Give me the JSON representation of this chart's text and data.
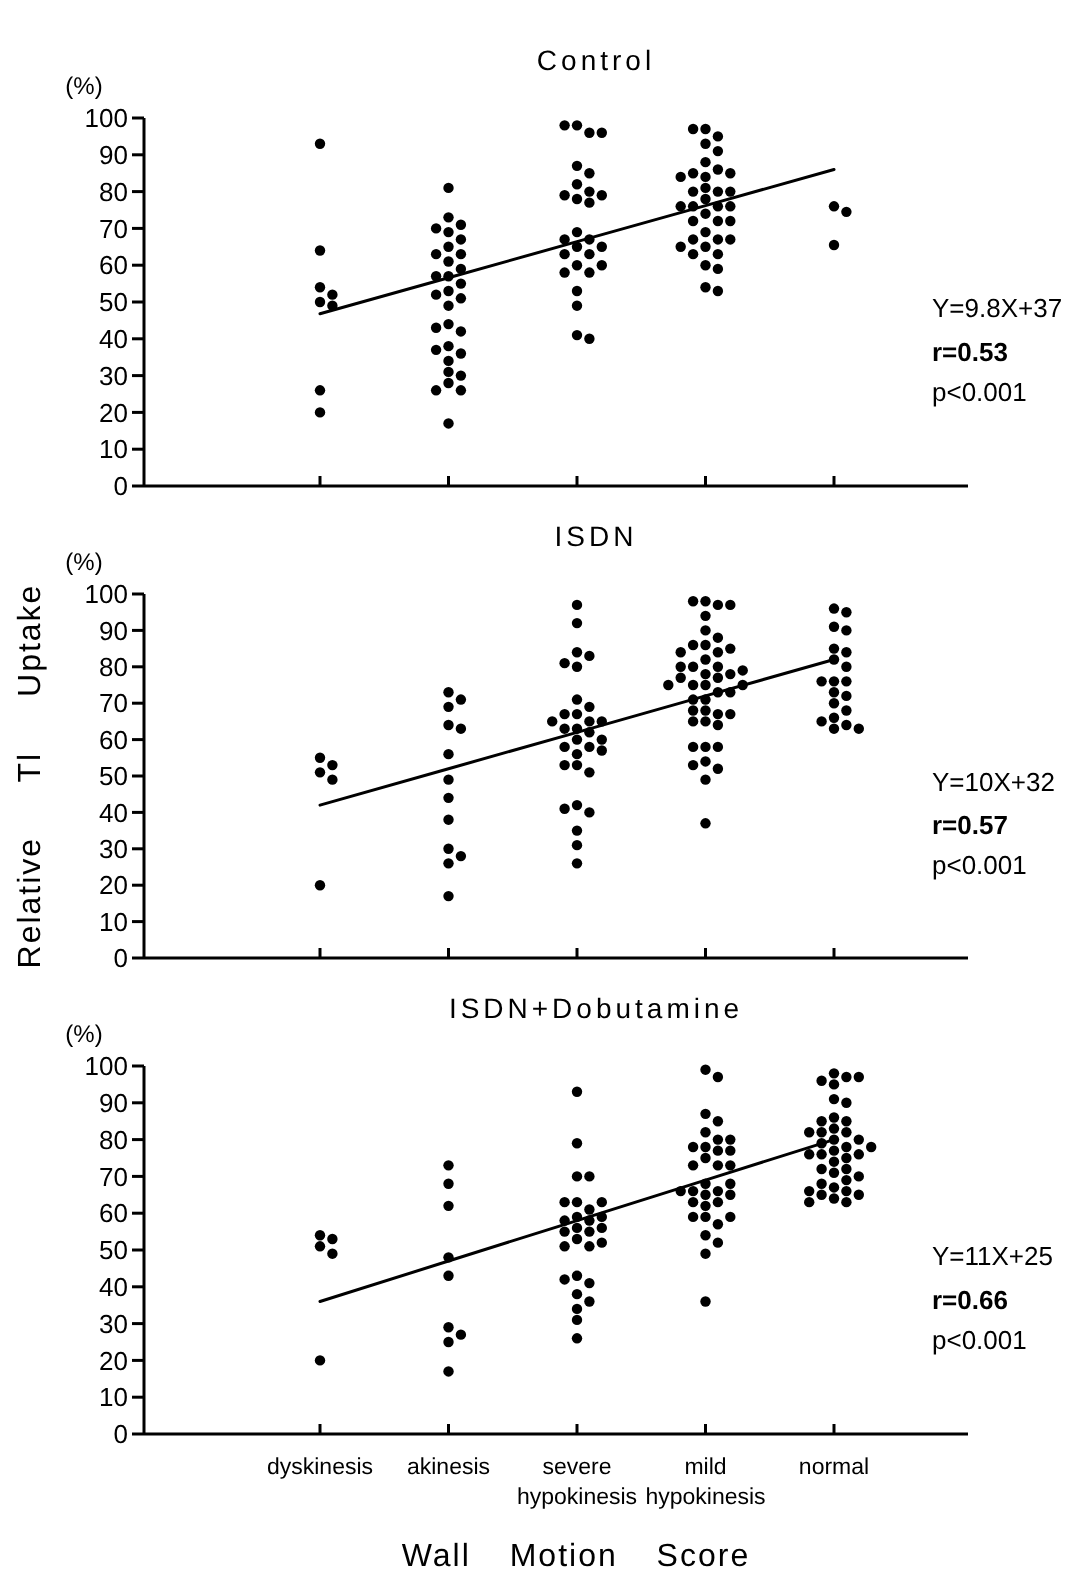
{
  "chart_data": [
    {
      "type": "scatter",
      "title": "Control",
      "ylabel": "(%)",
      "categories": [
        "dyskinesis",
        "akinesis",
        "severe hypokinesis",
        "mild hypokinesis",
        "normal"
      ],
      "ylim": [
        0,
        100
      ],
      "yticks": [
        0,
        10,
        20,
        30,
        40,
        50,
        60,
        70,
        80,
        90,
        100
      ],
      "tick_labels": "y",
      "marker": "circle",
      "annotations": [
        "Y=9.8X+37",
        "r=0.53",
        "p<0.001"
      ],
      "series": [
        {
          "type": "scatter",
          "color": "#000000",
          "x": [
            "dyskinesis",
            "dyskinesis",
            "dyskinesis",
            "dyskinesis",
            "dyskinesis",
            "dyskinesis",
            "dyskinesis",
            "dyskinesis"
          ],
          "values": [
            93,
            64,
            54,
            52,
            50,
            49,
            26,
            20
          ]
        },
        {
          "type": "scatter",
          "color": "#000000",
          "x": [
            "akinesis",
            "akinesis",
            "akinesis",
            "akinesis",
            "akinesis",
            "akinesis",
            "akinesis",
            "akinesis",
            "akinesis",
            "akinesis",
            "akinesis",
            "akinesis",
            "akinesis",
            "akinesis",
            "akinesis",
            "akinesis",
            "akinesis",
            "akinesis",
            "akinesis",
            "akinesis",
            "akinesis",
            "akinesis",
            "akinesis",
            "akinesis",
            "akinesis",
            "akinesis",
            "akinesis",
            "akinesis",
            "akinesis",
            "akinesis",
            "akinesis"
          ],
          "values": [
            81,
            73,
            71,
            69,
            67,
            65,
            63,
            61,
            59,
            57,
            55,
            53,
            51,
            49,
            44,
            42,
            38,
            36,
            34,
            31,
            30,
            28,
            26,
            17,
            70,
            63,
            57,
            52,
            43,
            37,
            26
          ]
        },
        {
          "type": "scatter",
          "color": "#000000",
          "x": [
            "severe hypokinesis",
            "severe hypokinesis",
            "severe hypokinesis",
            "severe hypokinesis",
            "severe hypokinesis",
            "severe hypokinesis",
            "severe hypokinesis",
            "severe hypokinesis",
            "severe hypokinesis",
            "severe hypokinesis",
            "severe hypokinesis",
            "severe hypokinesis",
            "severe hypokinesis",
            "severe hypokinesis",
            "severe hypokinesis",
            "severe hypokinesis",
            "severe hypokinesis",
            "severe hypokinesis",
            "severe hypokinesis",
            "severe hypokinesis",
            "severe hypokinesis",
            "severe hypokinesis",
            "severe hypokinesis",
            "severe hypokinesis",
            "severe hypokinesis",
            "severe hypokinesis",
            "severe hypokinesis"
          ],
          "values": [
            98,
            96,
            87,
            85,
            82,
            80,
            78,
            77,
            69,
            67,
            65,
            63,
            60,
            58,
            53,
            49,
            98,
            96,
            79,
            63,
            58,
            41,
            79,
            67,
            65,
            60,
            40
          ]
        },
        {
          "type": "scatter",
          "color": "#000000",
          "x": [
            "mild hypokinesis",
            "mild hypokinesis",
            "mild hypokinesis",
            "mild hypokinesis",
            "mild hypokinesis",
            "mild hypokinesis",
            "mild hypokinesis",
            "mild hypokinesis",
            "mild hypokinesis",
            "mild hypokinesis",
            "mild hypokinesis",
            "mild hypokinesis",
            "mild hypokinesis",
            "mild hypokinesis",
            "mild hypokinesis",
            "mild hypokinesis",
            "mild hypokinesis",
            "mild hypokinesis",
            "mild hypokinesis",
            "mild hypokinesis",
            "mild hypokinesis",
            "mild hypokinesis",
            "mild hypokinesis",
            "mild hypokinesis",
            "mild hypokinesis",
            "mild hypokinesis",
            "mild hypokinesis",
            "mild hypokinesis",
            "mild hypokinesis",
            "mild hypokinesis",
            "mild hypokinesis",
            "mild hypokinesis",
            "mild hypokinesis",
            "mild hypokinesis",
            "mild hypokinesis",
            "mild hypokinesis"
          ],
          "values": [
            97,
            95,
            93,
            88,
            86,
            84,
            81,
            80,
            78,
            76,
            74,
            72,
            69,
            67,
            65,
            63,
            60,
            59,
            54,
            97,
            91,
            85,
            80,
            76,
            72,
            67,
            63,
            53,
            85,
            80,
            76,
            72,
            67,
            65,
            84,
            76
          ]
        },
        {
          "type": "scatter",
          "color": "#000000",
          "x": [
            "normal",
            "normal",
            "normal"
          ],
          "values": [
            76,
            74.5,
            65.5
          ]
        },
        {
          "type": "line",
          "marker": "none",
          "color": "#000000",
          "x": [
            "dyskinesis",
            "akinesis",
            "severe hypokinesis",
            "mild hypokinesis",
            "normal"
          ],
          "values": [
            46.8,
            56.6,
            66.4,
            76.2,
            86
          ]
        }
      ]
    },
    {
      "type": "scatter",
      "title": "ISDN",
      "ylabel": "(%)",
      "categories": [
        "dyskinesis",
        "akinesis",
        "severe hypokinesis",
        "mild hypokinesis",
        "normal"
      ],
      "ylim": [
        0,
        100
      ],
      "yticks": [
        0,
        10,
        20,
        30,
        40,
        50,
        60,
        70,
        80,
        90,
        100
      ],
      "tick_labels": "y",
      "marker": "circle",
      "annotations": [
        "Relative Tl Uptake",
        "Y=10X+32",
        "r=0.57",
        "p<0.001"
      ],
      "series": [
        {
          "type": "scatter",
          "color": "#000000",
          "x": [
            "dyskinesis",
            "dyskinesis",
            "dyskinesis",
            "dyskinesis",
            "dyskinesis"
          ],
          "values": [
            55,
            53,
            51,
            49,
            20
          ]
        },
        {
          "type": "scatter",
          "color": "#000000",
          "x": [
            "akinesis",
            "akinesis",
            "akinesis",
            "akinesis",
            "akinesis",
            "akinesis",
            "akinesis",
            "akinesis",
            "akinesis",
            "akinesis",
            "akinesis",
            "akinesis",
            "akinesis"
          ],
          "values": [
            73,
            71,
            64,
            56,
            49,
            44,
            38,
            30,
            28,
            17,
            69,
            63,
            26
          ]
        },
        {
          "type": "scatter",
          "color": "#000000",
          "x": [
            "severe hypokinesis",
            "severe hypokinesis",
            "severe hypokinesis",
            "severe hypokinesis",
            "severe hypokinesis",
            "severe hypokinesis",
            "severe hypokinesis",
            "severe hypokinesis",
            "severe hypokinesis",
            "severe hypokinesis",
            "severe hypokinesis",
            "severe hypokinesis",
            "severe hypokinesis",
            "severe hypokinesis",
            "severe hypokinesis",
            "severe hypokinesis",
            "severe hypokinesis",
            "severe hypokinesis",
            "severe hypokinesis",
            "severe hypokinesis",
            "severe hypokinesis",
            "severe hypokinesis",
            "severe hypokinesis",
            "severe hypokinesis",
            "severe hypokinesis",
            "severe hypokinesis",
            "severe hypokinesis",
            "severe hypokinesis",
            "severe hypokinesis",
            "severe hypokinesis",
            "severe hypokinesis"
          ],
          "values": [
            97,
            92,
            84,
            83,
            80,
            71,
            69,
            67,
            65,
            63,
            62,
            60,
            58,
            56,
            53,
            51,
            42,
            40,
            35,
            31,
            26,
            81,
            67,
            65,
            58,
            53,
            41,
            65,
            63,
            60,
            57
          ]
        },
        {
          "type": "scatter",
          "color": "#000000",
          "x": [
            "mild hypokinesis",
            "mild hypokinesis",
            "mild hypokinesis",
            "mild hypokinesis",
            "mild hypokinesis",
            "mild hypokinesis",
            "mild hypokinesis",
            "mild hypokinesis",
            "mild hypokinesis",
            "mild hypokinesis",
            "mild hypokinesis",
            "mild hypokinesis",
            "mild hypokinesis",
            "mild hypokinesis",
            "mild hypokinesis",
            "mild hypokinesis",
            "mild hypokinesis",
            "mild hypokinesis",
            "mild hypokinesis",
            "mild hypokinesis",
            "mild hypokinesis",
            "mild hypokinesis",
            "mild hypokinesis",
            "mild hypokinesis",
            "mild hypokinesis",
            "mild hypokinesis",
            "mild hypokinesis",
            "mild hypokinesis",
            "mild hypokinesis",
            "mild hypokinesis",
            "mild hypokinesis",
            "mild hypokinesis",
            "mild hypokinesis",
            "mild hypokinesis",
            "mild hypokinesis",
            "mild hypokinesis",
            "mild hypokinesis",
            "mild hypokinesis",
            "mild hypokinesis",
            "mild hypokinesis",
            "mild hypokinesis",
            "mild hypokinesis",
            "mild hypokinesis",
            "mild hypokinesis"
          ],
          "values": [
            98,
            97,
            94,
            90,
            88,
            86,
            84,
            82,
            80,
            78,
            77,
            75,
            73,
            71,
            68,
            67,
            65,
            64,
            58,
            54,
            52,
            49,
            37,
            98,
            86,
            80,
            78,
            75,
            73,
            68,
            65,
            58,
            53,
            97,
            85,
            80,
            77,
            75,
            71,
            67,
            58,
            84,
            79,
            75
          ]
        },
        {
          "type": "scatter",
          "color": "#000000",
          "x": [
            "normal",
            "normal",
            "normal",
            "normal",
            "normal",
            "normal",
            "normal",
            "normal",
            "normal",
            "normal",
            "normal",
            "normal",
            "normal",
            "normal",
            "normal",
            "normal",
            "normal",
            "normal",
            "normal",
            "normal"
          ],
          "values": [
            96,
            91,
            85,
            84,
            82,
            80,
            76,
            73,
            72,
            70,
            68,
            66,
            64,
            63,
            95,
            90,
            76,
            65,
            63,
            76
          ]
        },
        {
          "type": "line",
          "marker": "none",
          "color": "#000000",
          "x": [
            "dyskinesis",
            "akinesis",
            "severe hypokinesis",
            "mild hypokinesis",
            "normal"
          ],
          "values": [
            42,
            52,
            62,
            72,
            82
          ]
        }
      ]
    },
    {
      "type": "scatter",
      "title": "ISDN+Dobutamine",
      "ylabel": "(%)",
      "xlabel": "Wall Motion Score",
      "categories": [
        "dyskinesis",
        "akinesis",
        "severe hypokinesis",
        "mild hypokinesis",
        "normal"
      ],
      "ylim": [
        0,
        100
      ],
      "yticks": [
        0,
        10,
        20,
        30,
        40,
        50,
        60,
        70,
        80,
        90,
        100
      ],
      "marker": "circle",
      "annotations": [
        "Y=11X+25",
        "r=0.66",
        "p<0.001"
      ],
      "series": [
        {
          "type": "scatter",
          "color": "#000000",
          "x": [
            "dyskinesis",
            "dyskinesis",
            "dyskinesis",
            "dyskinesis",
            "dyskinesis"
          ],
          "values": [
            54,
            53,
            51,
            49,
            20
          ]
        },
        {
          "type": "scatter",
          "color": "#000000",
          "x": [
            "akinesis",
            "akinesis",
            "akinesis",
            "akinesis",
            "akinesis",
            "akinesis",
            "akinesis",
            "akinesis",
            "akinesis"
          ],
          "values": [
            73,
            68,
            62,
            48,
            43,
            29,
            27,
            17,
            25
          ]
        },
        {
          "type": "scatter",
          "color": "#000000",
          "x": [
            "severe hypokinesis",
            "severe hypokinesis",
            "severe hypokinesis",
            "severe hypokinesis",
            "severe hypokinesis",
            "severe hypokinesis",
            "severe hypokinesis",
            "severe hypokinesis",
            "severe hypokinesis",
            "severe hypokinesis",
            "severe hypokinesis",
            "severe hypokinesis",
            "severe hypokinesis",
            "severe hypokinesis",
            "severe hypokinesis",
            "severe hypokinesis",
            "severe hypokinesis",
            "severe hypokinesis",
            "severe hypokinesis",
            "severe hypokinesis",
            "severe hypokinesis",
            "severe hypokinesis",
            "severe hypokinesis",
            "severe hypokinesis",
            "severe hypokinesis",
            "severe hypokinesis",
            "severe hypokinesis",
            "severe hypokinesis"
          ],
          "values": [
            93,
            79,
            70,
            63,
            61,
            59,
            58,
            56,
            55,
            53,
            51,
            43,
            41,
            38,
            36,
            34,
            31,
            26,
            63,
            58,
            55,
            51,
            70,
            63,
            59,
            56,
            52,
            42
          ]
        },
        {
          "type": "scatter",
          "color": "#000000",
          "x": [
            "mild hypokinesis",
            "mild hypokinesis",
            "mild hypokinesis",
            "mild hypokinesis",
            "mild hypokinesis",
            "mild hypokinesis",
            "mild hypokinesis",
            "mild hypokinesis",
            "mild hypokinesis",
            "mild hypokinesis",
            "mild hypokinesis",
            "mild hypokinesis",
            "mild hypokinesis",
            "mild hypokinesis",
            "mild hypokinesis",
            "mild hypokinesis",
            "mild hypokinesis",
            "mild hypokinesis",
            "mild hypokinesis",
            "mild hypokinesis",
            "mild hypokinesis",
            "mild hypokinesis",
            "mild hypokinesis",
            "mild hypokinesis",
            "mild hypokinesis",
            "mild hypokinesis",
            "mild hypokinesis",
            "mild hypokinesis",
            "mild hypokinesis",
            "mild hypokinesis",
            "mild hypokinesis",
            "mild hypokinesis",
            "mild hypokinesis"
          ],
          "values": [
            99,
            97,
            87,
            82,
            80,
            78,
            75,
            73,
            68,
            66,
            65,
            63,
            62,
            59,
            57,
            54,
            52,
            49,
            36,
            85,
            78,
            77,
            73,
            66,
            63,
            59,
            80,
            73,
            68,
            65,
            59,
            77,
            66
          ]
        },
        {
          "type": "scatter",
          "color": "#000000",
          "x": [
            "normal",
            "normal",
            "normal",
            "normal",
            "normal",
            "normal",
            "normal",
            "normal",
            "normal",
            "normal",
            "normal",
            "normal",
            "normal",
            "normal",
            "normal",
            "normal",
            "normal",
            "normal",
            "normal",
            "normal",
            "normal",
            "normal",
            "normal",
            "normal",
            "normal",
            "normal",
            "normal",
            "normal",
            "normal",
            "normal",
            "normal",
            "normal",
            "normal",
            "normal",
            "normal",
            "normal",
            "normal",
            "normal",
            "normal"
          ],
          "values": [
            98,
            97,
            96,
            91,
            86,
            85,
            83,
            82,
            80,
            78,
            77,
            76,
            74,
            72,
            71,
            69,
            67,
            66,
            65,
            64,
            63,
            95,
            82,
            79,
            76,
            72,
            68,
            65,
            63,
            97,
            90,
            85,
            80,
            76,
            70,
            66,
            82,
            78,
            75
          ]
        },
        {
          "type": "line",
          "marker": "none",
          "color": "#000000",
          "x": [
            "dyskinesis",
            "akinesis",
            "severe hypokinesis",
            "mild hypokinesis",
            "normal"
          ],
          "values": [
            36,
            47,
            58,
            69,
            80
          ]
        }
      ]
    }
  ]
}
